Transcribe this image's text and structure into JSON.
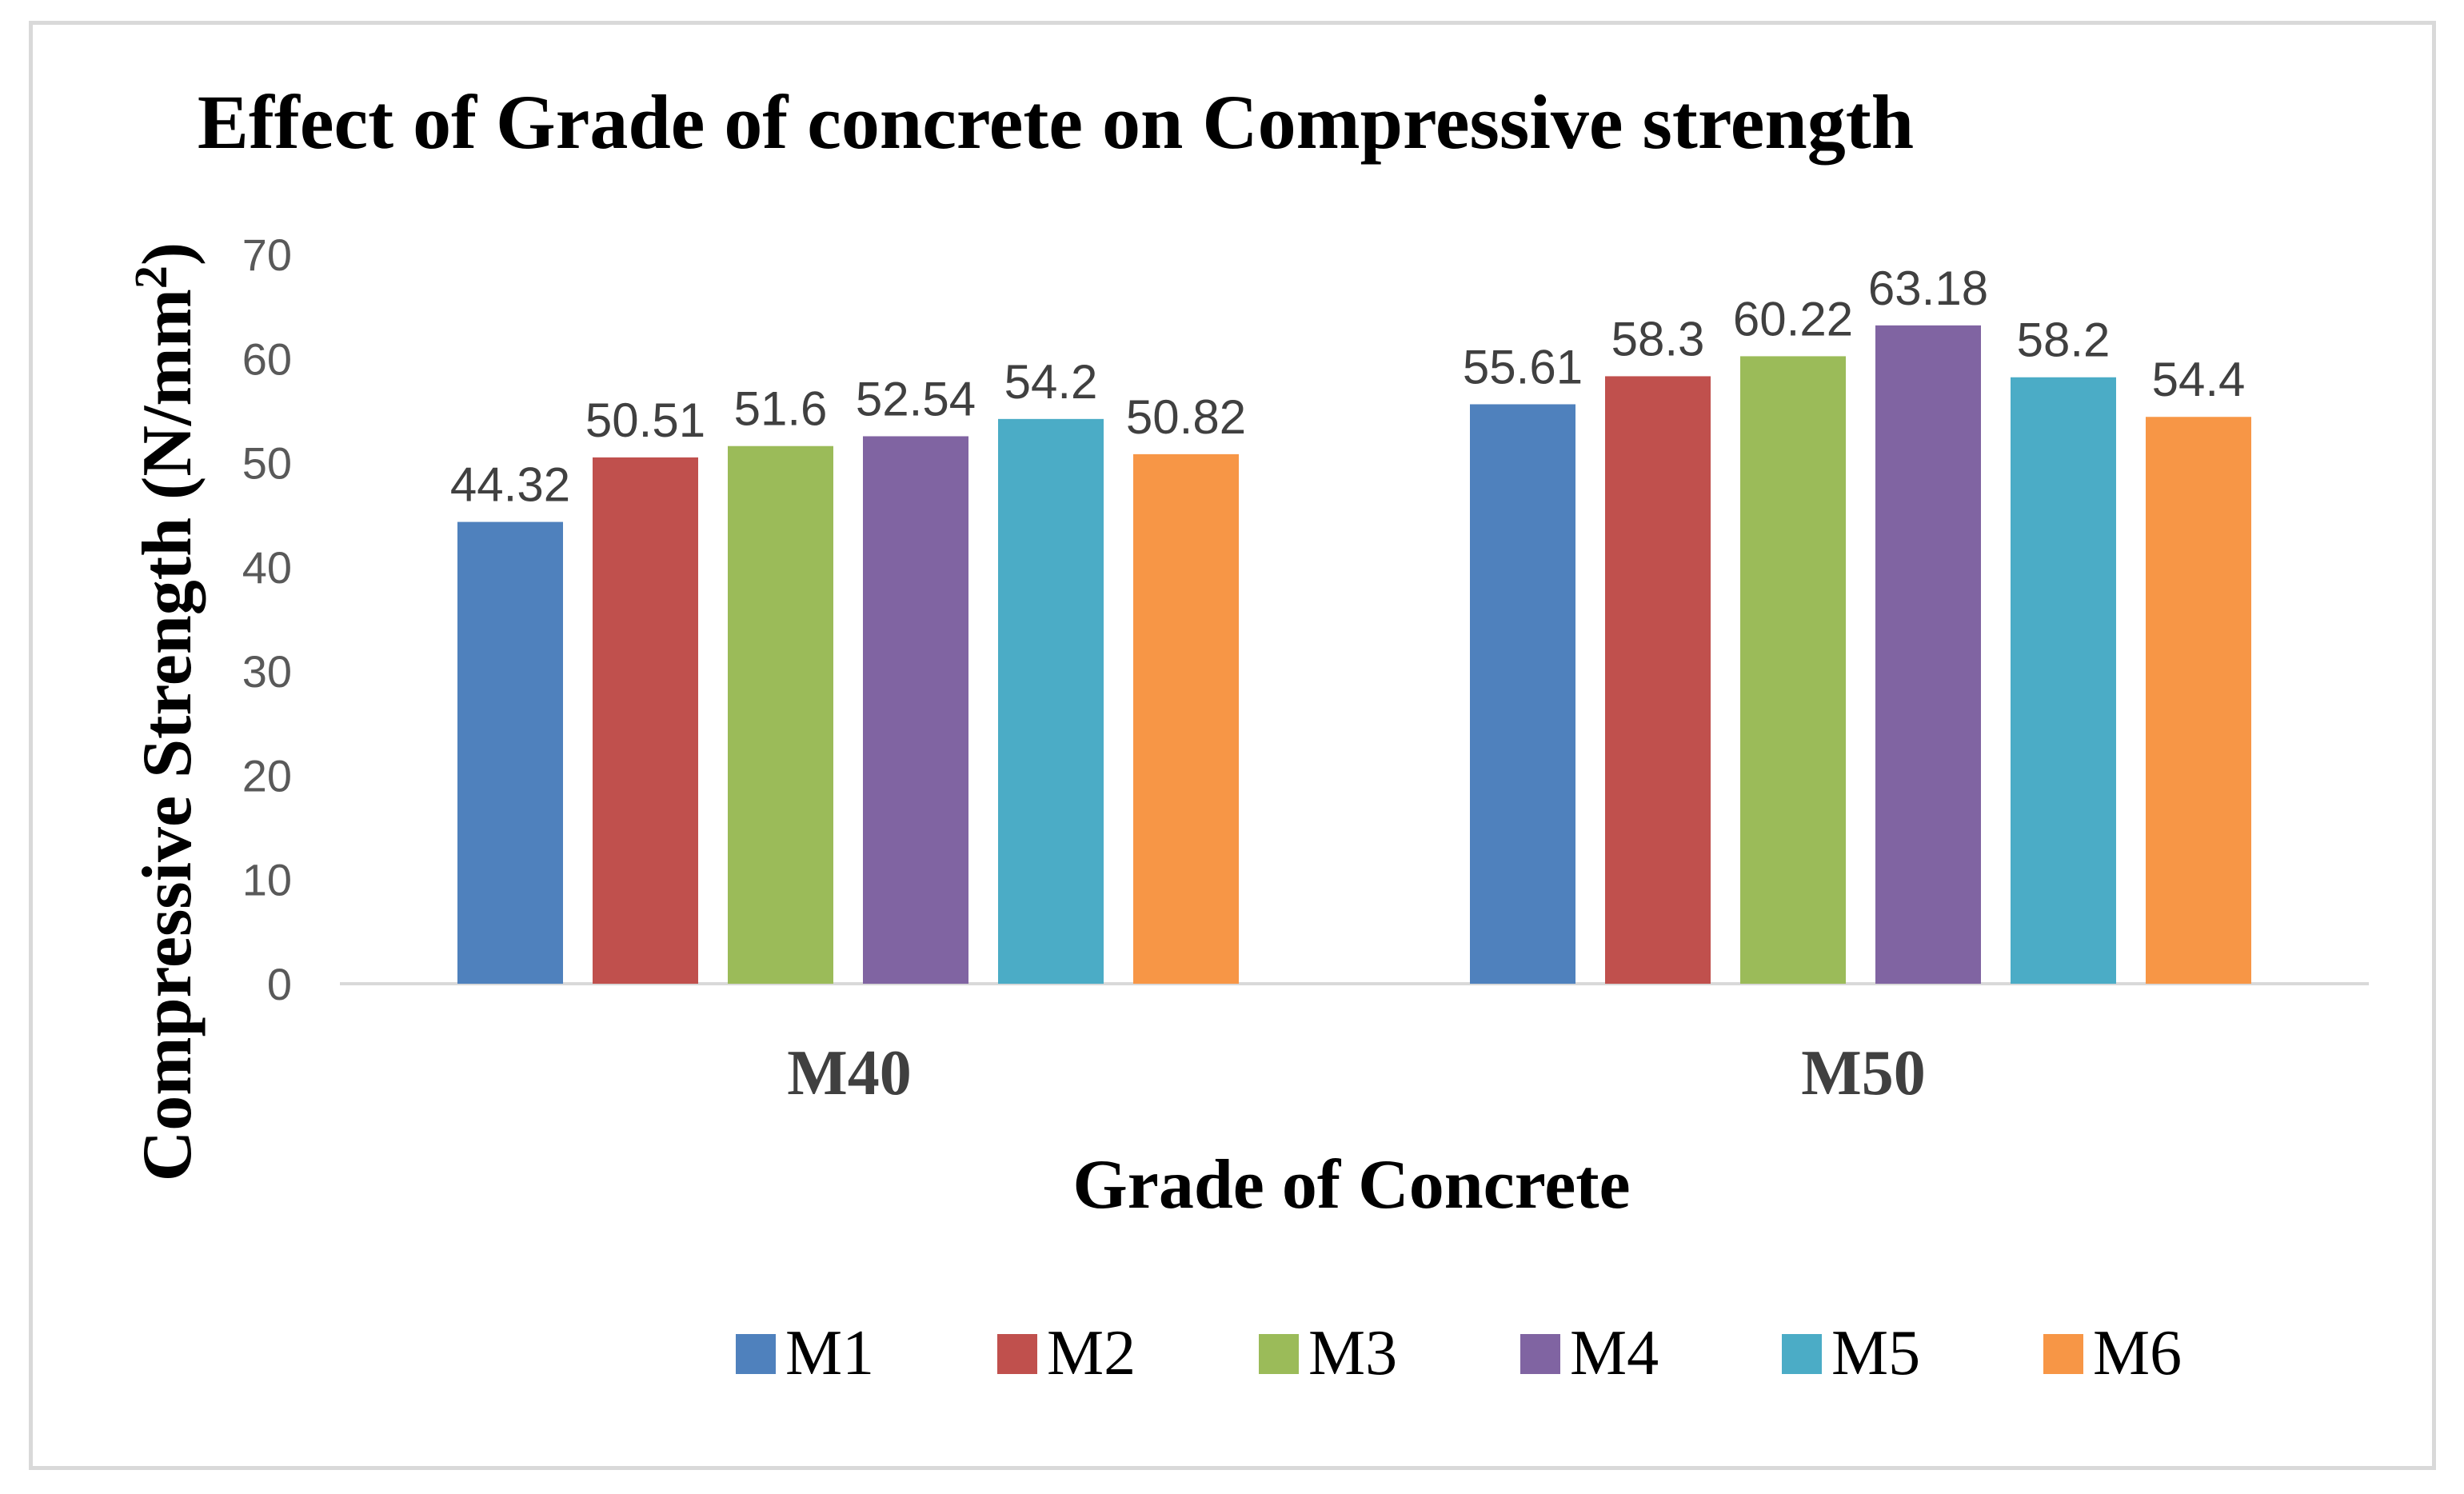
{
  "chart_data": {
    "type": "bar",
    "title": "Effect of Grade of concrete on Compressive strength",
    "xlabel": "Grade of Concrete",
    "ylabel": "Compressive Strength (N/mm",
    "ylabel_sup": "2",
    "ylabel_close": ")",
    "categories": [
      "M40",
      "M50"
    ],
    "series": [
      {
        "name": "M1",
        "color": "#4f81bd",
        "values": [
          44.32,
          55.61
        ],
        "labels": [
          "44.32",
          "55.61"
        ]
      },
      {
        "name": "M2",
        "color": "#c0504d",
        "values": [
          50.51,
          58.3
        ],
        "labels": [
          "50.51",
          "58.3"
        ]
      },
      {
        "name": "M3",
        "color": "#9bbb59",
        "values": [
          51.6,
          60.22
        ],
        "labels": [
          "51.6",
          "60.22"
        ]
      },
      {
        "name": "M4",
        "color": "#8064a2",
        "values": [
          52.54,
          63.18
        ],
        "labels": [
          "52.54",
          "63.18"
        ]
      },
      {
        "name": "M5",
        "color": "#4bacc6",
        "values": [
          54.2,
          58.2
        ],
        "labels": [
          "54.2",
          "58.2"
        ]
      },
      {
        "name": "M6",
        "color": "#f79646",
        "values": [
          50.82,
          54.4
        ],
        "labels": [
          "50.82",
          "54.4"
        ]
      }
    ],
    "ylim": [
      0,
      70
    ],
    "yticks": [
      "0",
      "10",
      "20",
      "30",
      "40",
      "50",
      "60",
      "70"
    ],
    "grid": false,
    "legend_position": "bottom"
  }
}
